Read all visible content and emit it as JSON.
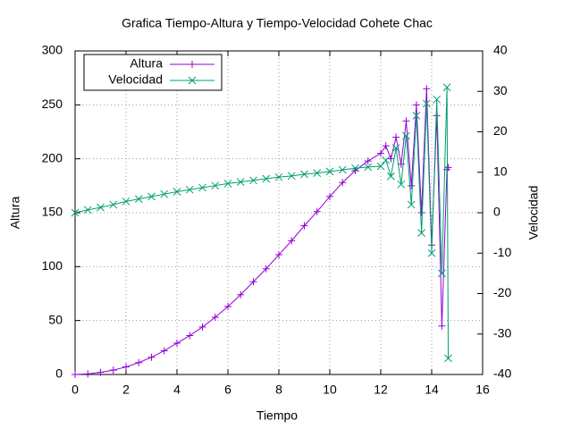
{
  "chart_data": {
    "type": "line",
    "title": "Grafica Tiempo-Altura y Tiempo-Velocidad Cohete Chac",
    "xlabel": "Tiempo",
    "ylabel": "Altura",
    "y2label": "Velocidad",
    "x": [
      0,
      0.5,
      1,
      1.5,
      2,
      2.5,
      3,
      3.5,
      4,
      4.5,
      5,
      5.5,
      6,
      6.5,
      7,
      7.5,
      8,
      8.5,
      9,
      9.5,
      10,
      10.5,
      11,
      11.5,
      12,
      12.2,
      12.4,
      12.6,
      12.8,
      13,
      13.2,
      13.4,
      13.6,
      13.8,
      14,
      14.2,
      14.4,
      14.6,
      14.65
    ],
    "series": [
      {
        "name": "Altura",
        "color": "#9400d3",
        "marker": "plus",
        "axis": "y",
        "values": [
          0,
          0.5,
          2,
          4,
          7,
          11,
          16,
          22,
          29,
          36,
          44,
          53,
          63,
          74,
          86,
          98,
          111,
          124,
          138,
          151,
          165,
          178,
          189,
          198,
          205,
          212,
          200,
          220,
          195,
          235,
          175,
          250,
          150,
          265,
          120,
          240,
          45,
          190,
          192
        ]
      },
      {
        "name": "Velocidad",
        "color": "#009e73",
        "marker": "cross",
        "axis": "y2",
        "values": [
          0,
          0.7,
          1.3,
          2,
          2.8,
          3.4,
          4,
          4.6,
          5.2,
          5.7,
          6.2,
          6.7,
          7.2,
          7.6,
          8,
          8.4,
          8.8,
          9.1,
          9.5,
          9.8,
          10.2,
          10.6,
          11,
          11.3,
          11.5,
          13,
          9,
          16,
          7,
          19,
          2,
          24,
          -5,
          27,
          -10,
          28,
          -15,
          31,
          -36
        ]
      }
    ],
    "xlim": [
      0,
      16
    ],
    "xticks": [
      0,
      2,
      4,
      6,
      8,
      10,
      12,
      14,
      16
    ],
    "ylim": [
      0,
      300
    ],
    "yticks": [
      0,
      50,
      100,
      150,
      200,
      250,
      300
    ],
    "y2lim": [
      -40,
      40
    ],
    "y2ticks": [
      -40,
      -30,
      -20,
      -10,
      0,
      10,
      20,
      30,
      40
    ],
    "grid": true,
    "legend": "top-left"
  }
}
